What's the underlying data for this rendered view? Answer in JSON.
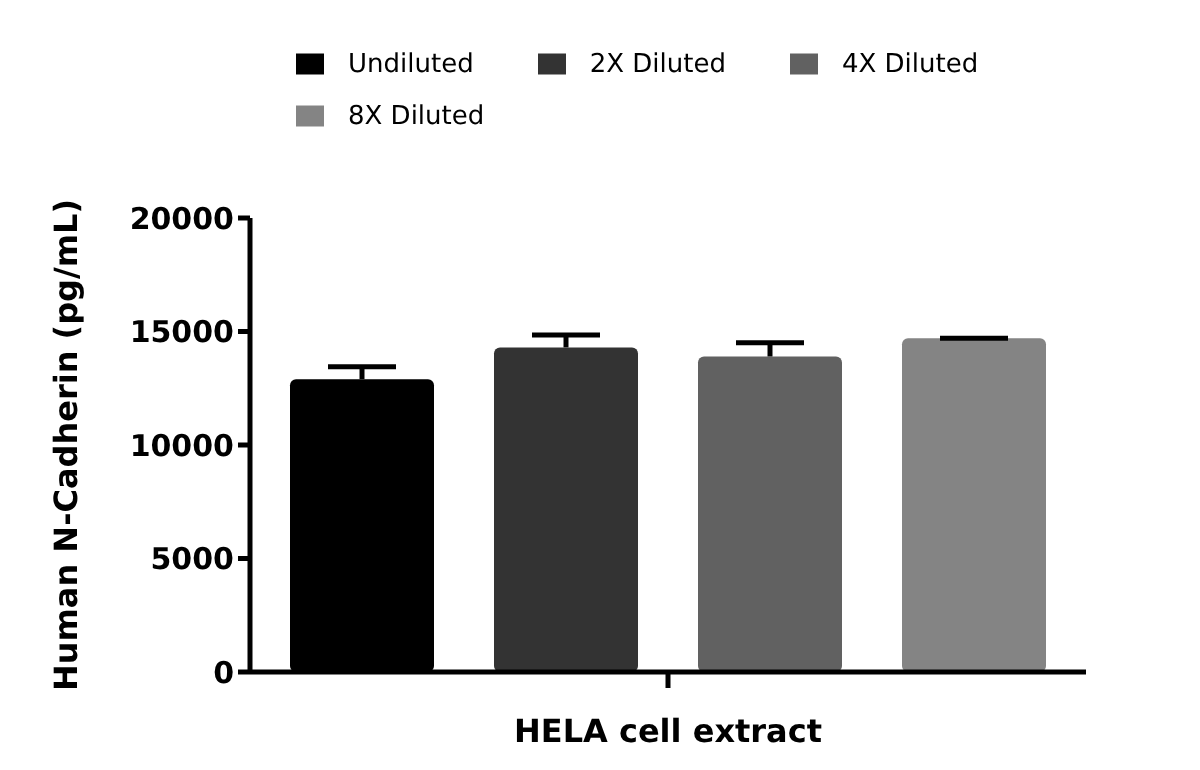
{
  "chart_data": {
    "type": "bar",
    "categories": [
      null
    ],
    "xlabel": "HELA cell extract",
    "ylabel": "Human N-Cadherin (pg/mL)",
    "series": [
      {
        "name": "Undiluted",
        "color": "#000000",
        "values": [
          12900
        ],
        "errors": [
          550
        ]
      },
      {
        "name": "2X Diluted",
        "color": "#333333",
        "values": [
          14300
        ],
        "errors": [
          550
        ]
      },
      {
        "name": "4X Diluted",
        "color": "#616161",
        "values": [
          13900
        ],
        "errors": [
          600
        ]
      },
      {
        "name": "8X Diluted",
        "color": "#848484",
        "values": [
          14700
        ],
        "errors": [
          0
        ]
      }
    ],
    "ylim": [
      0,
      20000
    ],
    "yticks": [
      0,
      5000,
      10000,
      15000,
      20000
    ],
    "grid": false,
    "legend": "top"
  }
}
